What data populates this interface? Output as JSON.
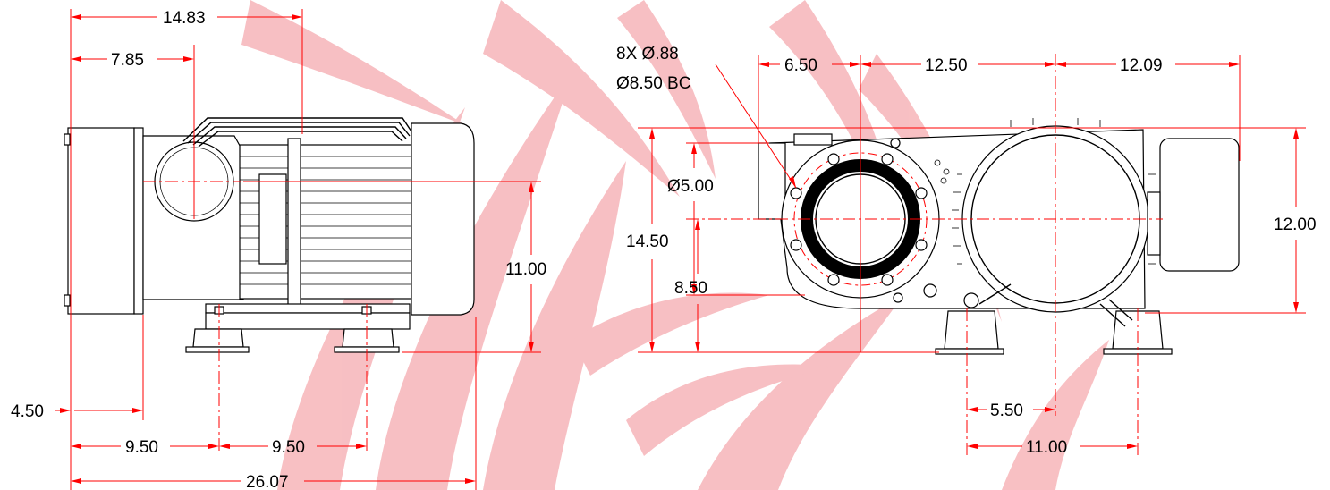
{
  "colors": {
    "dimension": "#ff0000",
    "outline": "#000000",
    "watermark": "#f7b9bd",
    "background": "#ffffff"
  },
  "side_view": {
    "overall_length": "26.07",
    "inlet_offset": "14.83",
    "centerline_offset": "7.85",
    "flange_thickness": "4.50",
    "foot_spacing_1": "9.50",
    "foot_spacing_2": "9.50",
    "inlet_height": "11.00"
  },
  "front_view": {
    "hole_callout_line1": "8X Ø.88",
    "hole_callout_line2": "Ø8.50 BC",
    "left_offset": "6.50",
    "center_spacing": "12.50",
    "right_offset": "12.09",
    "inlet_diameter": "Ø5.00",
    "overall_height": "14.50",
    "inlet_center_height": "8.50",
    "motor_height": "12.00",
    "foot_half_spacing": "5.50",
    "foot_spacing": "11.00"
  }
}
